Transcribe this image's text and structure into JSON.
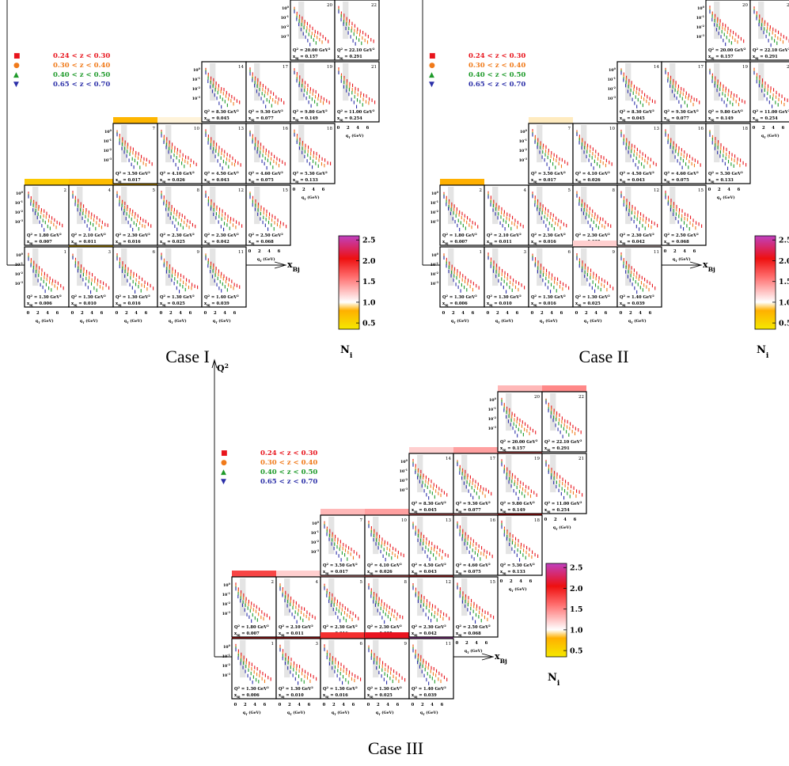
{
  "axis_labels": {
    "q2": "Q",
    "q2_sup": "2",
    "xbj": "x",
    "xbj_sub": "Bj"
  },
  "legend": [
    {
      "marker": "■",
      "label": "0.24 < z < 0.30",
      "color": "#e8141c"
    },
    {
      "marker": "●",
      "label": "0.30 < z < 0.40",
      "color": "#f07a1a"
    },
    {
      "marker": "▲",
      "label": "0.40 < z < 0.50",
      "color": "#1e9a2a"
    },
    {
      "marker": "▼",
      "label": "0.65 < z < 0.70",
      "color": "#2b2fa8"
    }
  ],
  "colorbar": {
    "title": "N",
    "title_sub": "i",
    "ticks": [
      "2.5",
      "2.0",
      "1.5",
      "1.0",
      "0.5"
    ],
    "tick_values": [
      2.5,
      2.0,
      1.5,
      1.0,
      0.5
    ],
    "range": [
      0.35,
      2.6
    ],
    "stops": [
      "#f5e800",
      "#ffb000",
      "#ffffff",
      "#ff7070",
      "#ee1010",
      "#c040c0"
    ]
  },
  "panel_text": {
    "ytick_labels": [
      "10",
      "10",
      "10",
      "10"
    ],
    "ytick_exps": [
      "0",
      "-1",
      "-2",
      "-3"
    ],
    "xtick_labels": [
      "0",
      "2",
      "4",
      "6"
    ],
    "xaxis_label": "q",
    "xaxis_sub": "T",
    "xaxis_unit": "(GeV)",
    "q2_prefix": "Q",
    "q2_sup": "2",
    "q2_eq": " = ",
    "q2_unit": "GeV",
    "xbj_prefix": "x",
    "xbj_sub": "Bj",
    "xbj_eq": " = "
  },
  "chart_data": {
    "type": "scatter",
    "title": "",
    "panels": [
      {
        "id": "1",
        "Q2": "1.30",
        "xBj": "0.006"
      },
      {
        "id": "2",
        "Q2": "1.80",
        "xBj": "0.007"
      },
      {
        "id": "3",
        "Q2": "1.30",
        "xBj": "0.010"
      },
      {
        "id": "4",
        "Q2": "2.10",
        "xBj": "0.011"
      },
      {
        "id": "5",
        "Q2": "2.30",
        "xBj": "0.016"
      },
      {
        "id": "6",
        "Q2": "1.30",
        "xBj": "0.016"
      },
      {
        "id": "7",
        "Q2": "3.50",
        "xBj": "0.017"
      },
      {
        "id": "8",
        "Q2": "2.30",
        "xBj": "0.025"
      },
      {
        "id": "9",
        "Q2": "1.30",
        "xBj": "0.025"
      },
      {
        "id": "10",
        "Q2": "4.10",
        "xBj": "0.026"
      },
      {
        "id": "11",
        "Q2": "1.40",
        "xBj": "0.039"
      },
      {
        "id": "12",
        "Q2": "2.30",
        "xBj": "0.042"
      },
      {
        "id": "13",
        "Q2": "4.50",
        "xBj": "0.043"
      },
      {
        "id": "14",
        "Q2": "8.30",
        "xBj": "0.045"
      },
      {
        "id": "15",
        "Q2": "2.50",
        "xBj": "0.068"
      },
      {
        "id": "16",
        "Q2": "4.60",
        "xBj": "0.075"
      },
      {
        "id": "17",
        "Q2": "9.30",
        "xBj": "0.077"
      },
      {
        "id": "18",
        "Q2": "5.30",
        "xBj": "0.133"
      },
      {
        "id": "19",
        "Q2": "9.80",
        "xBj": "0.149"
      },
      {
        "id": "20",
        "Q2": "20.00",
        "xBj": "0.157"
      },
      {
        "id": "21",
        "Q2": "11.00",
        "xBj": "0.254"
      },
      {
        "id": "22",
        "Q2": "22.10",
        "xBj": "0.291"
      }
    ],
    "series_colors": [
      "#e8141c",
      "#f07a1a",
      "#1e9a2a",
      "#2b2fa8"
    ],
    "cases": [
      {
        "name": "Case I",
        "N": {
          "1": null,
          "2": 0.6,
          "3": 0.65,
          "4": 0.7,
          "5": 0.72,
          "6": null,
          "7": 0.75,
          "8": null,
          "9": null,
          "10": 0.97,
          "11": null,
          "12": null,
          "13": null,
          "14": null,
          "15": null,
          "16": null,
          "17": null,
          "18": null,
          "19": null,
          "20": null,
          "21": null,
          "22": null
        }
      },
      {
        "name": "Case II",
        "N": {
          "1": null,
          "2": 0.8,
          "3": null,
          "4": null,
          "5": null,
          "6": null,
          "7": 0.95,
          "8": null,
          "9": 1.2,
          "10": null,
          "11": 1.1,
          "12": null,
          "13": null,
          "14": null,
          "15": null,
          "16": null,
          "17": null,
          "18": null,
          "19": null,
          "20": null,
          "21": null,
          "22": null
        }
      },
      {
        "name": "Case III",
        "N": {
          "1": 2.0,
          "2": 1.8,
          "3": 2.0,
          "4": 1.2,
          "5": 1.4,
          "6": 1.9,
          "7": 1.3,
          "8": 1.6,
          "9": 2.1,
          "10": 1.4,
          "11": 2.6,
          "12": 1.9,
          "13": 1.6,
          "14": 1.2,
          "15": null,
          "16": 1.4,
          "17": 1.4,
          "18": 2.0,
          "19": 1.6,
          "20": 1.3,
          "21": null,
          "22": 1.5
        }
      }
    ]
  }
}
